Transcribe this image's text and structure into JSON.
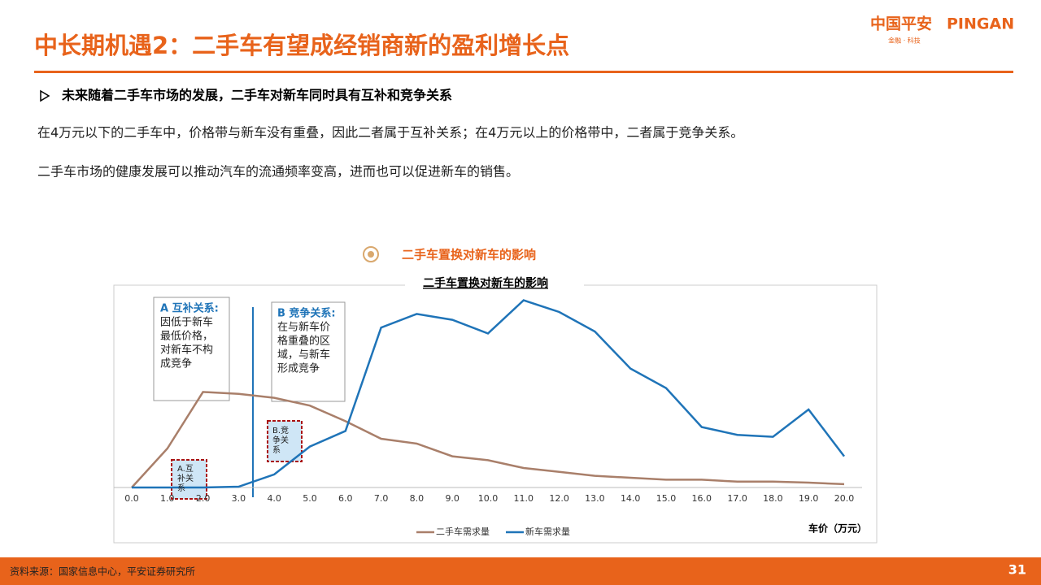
{
  "header": {
    "title": "中长期机遇2：二手车有望成经销商新的盈利增长点",
    "logo_cn": "中国平安",
    "logo_en": "PINGAN",
    "logo_sub": "金融 · 科技"
  },
  "bullet": "未来随着二手车市场的发展，二手车对新车同时具有互补和竞争关系",
  "paragraphs": [
    "在4万元以下的二手车中，价格带与新车没有重叠，因此二者属于互补关系；在4万元以上的价格带中，二者属于竞争关系。",
    "二手车市场的健康发展可以推动汽车的流通频率变高，进而也可以促进新车的销售。"
  ],
  "chart_subheading": "二手车置换对新车的影响",
  "chart_data": {
    "type": "line",
    "title": "二手车置换对新车的影响",
    "categories": [
      "0.0",
      "1.0",
      "2.0",
      "3.0",
      "4.0",
      "5.0",
      "6.0",
      "7.0",
      "8.0",
      "9.0",
      "10.0",
      "11.0",
      "12.0",
      "13.0",
      "14.0",
      "15.0",
      "16.0",
      "17.0",
      "18.0",
      "19.0",
      "20.0"
    ],
    "series": [
      {
        "name": "二手车需求量",
        "color": "#a97f6a",
        "values": [
          0,
          20,
          49,
          48,
          46,
          42,
          34,
          25,
          22.5,
          16,
          14,
          10,
          8,
          6,
          5,
          4,
          4,
          3,
          3,
          2.5,
          1.7
        ]
      },
      {
        "name": "新车需求量",
        "color": "#1f74b8",
        "values": [
          0,
          0,
          0,
          0.4,
          6.7,
          21,
          29,
          82,
          89,
          86,
          79,
          96,
          90,
          80,
          61,
          51,
          31,
          27,
          26,
          40,
          16
        ]
      }
    ],
    "ylim": [
      0,
      100
    ],
    "x_label": "车价（万元）",
    "legend": "bottom",
    "annotations": [
      {
        "heading": "A 互补关系:",
        "lines": [
          "因低于新车",
          "最低价格，",
          "对新车不构",
          "成竞争"
        ]
      },
      {
        "heading": "B 竞争关系:",
        "lines": [
          "在与新车价",
          "格重叠的区",
          "域，与新车",
          "形成竞争"
        ]
      },
      {
        "lines": [
          "A.互",
          "补关",
          "系"
        ]
      },
      {
        "lines": [
          "B.竞",
          "争关",
          "系"
        ]
      }
    ]
  },
  "footer": {
    "source": "资料来源：国家信息中心，平安证券研究所",
    "page": "31"
  }
}
